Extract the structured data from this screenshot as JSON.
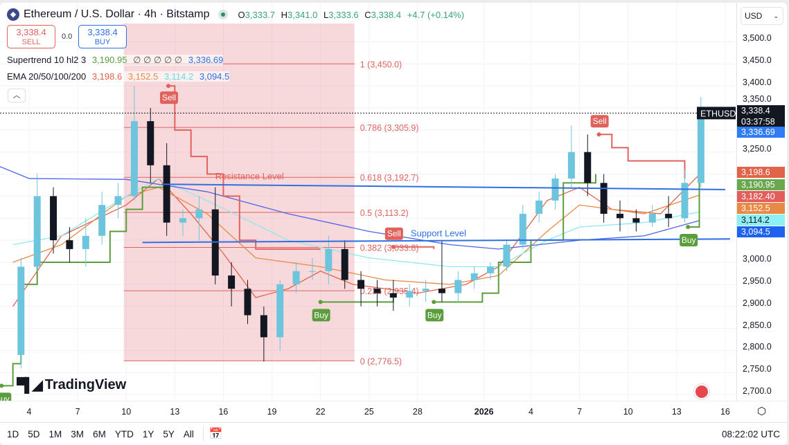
{
  "header": {
    "symbol_title": "Ethereum / U.S. Dollar · 4h · Bitstamp",
    "o_label": "O",
    "o": "3,333.7",
    "h_label": "H",
    "h": "3,341.0",
    "l_label": "L",
    "l": "3,333.6",
    "c_label": "C",
    "c": "3,338.4",
    "change": "+4.7 (+0.14%)"
  },
  "trade": {
    "sell_price": "3,338.4",
    "sell_label": "SELL",
    "spread": "0.0",
    "buy_price": "3,338.4",
    "buy_label": "BUY"
  },
  "indicators": {
    "supertrend": {
      "name": "Supertrend 10 hl2 3",
      "v1": "3,190.95",
      "placeholders": "∅ ∅ ∅ ∅ ∅",
      "v2": "3,336.69"
    },
    "ema": {
      "name": "EMA 20/50/100/200",
      "v20": "3,198.6",
      "v50": "3,152.5",
      "v100": "3,114.2",
      "v200": "3,094.5"
    }
  },
  "currency": "USD",
  "symbol_tag": "ETHUSD",
  "price_tags": [
    {
      "text": "3,338.4",
      "sub": "03:37:58",
      "color": "#131722"
    },
    {
      "text": "3,336.69",
      "color": "#2f7cf6"
    },
    {
      "text": "3,198.6",
      "color": "#e0634a"
    },
    {
      "text": "3,190.95",
      "color": "#6aa84f"
    },
    {
      "text": "3,182.40",
      "color": "#e35d5b"
    },
    {
      "text": "3,152.5",
      "color": "#e88a45"
    },
    {
      "text": "3,114.2",
      "color": "#8ef0f5"
    },
    {
      "text": "3,094.5",
      "color": "#1e62f0"
    }
  ],
  "x_ticks": [
    {
      "label": "4",
      "day": 4
    },
    {
      "label": "7",
      "day": 7
    },
    {
      "label": "10",
      "day": 10
    },
    {
      "label": "13",
      "day": 13
    },
    {
      "label": "16",
      "day": 16
    },
    {
      "label": "19",
      "day": 19
    },
    {
      "label": "22",
      "day": 22
    },
    {
      "label": "25",
      "day": 25
    },
    {
      "label": "28",
      "day": 28
    },
    {
      "label": "2026",
      "day": 32.1,
      "bold": true
    },
    {
      "label": "4",
      "day": 35
    },
    {
      "label": "7",
      "day": 38
    },
    {
      "label": "10",
      "day": 41
    },
    {
      "label": "13",
      "day": 44
    },
    {
      "label": "16",
      "day": 47
    }
  ],
  "toolbar": {
    "ranges": [
      "1D",
      "5D",
      "1M",
      "3M",
      "6M",
      "YTD",
      "1Y",
      "5Y",
      "All"
    ],
    "time": "08:22:02 UTC"
  },
  "brand": "TradingView",
  "chart_data": {
    "type": "candlestick",
    "title": "Ethereum / U.S. Dollar · 4h · Bitstamp",
    "ylim": [
      2680,
      3540
    ],
    "y_ticks": [
      {
        "v": 2700,
        "label": "2,700.0"
      },
      {
        "v": 2750,
        "label": "2,750.0"
      },
      {
        "v": 2800,
        "label": "2,800.0"
      },
      {
        "v": 2850,
        "label": "2,850.0"
      },
      {
        "v": 2900,
        "label": "2,900.0"
      },
      {
        "v": 2950,
        "label": "2,950.0"
      },
      {
        "v": 3000,
        "label": "3,000.0"
      },
      {
        "v": 3250,
        "label": "3,250.0"
      },
      {
        "v": 3350,
        "label": "3,350.0"
      },
      {
        "v": 3400,
        "label": "3,400.0"
      },
      {
        "v": 3450,
        "label": "3,450.0"
      },
      {
        "v": 3500,
        "label": "3,500.0"
      }
    ],
    "x_unit": "day index (Dec=day, Jan=31+day)",
    "candles": [
      [
        3,
        2790,
        3010,
        2760,
        2990
      ],
      [
        4,
        2990,
        3200,
        2980,
        3150
      ],
      [
        5,
        3150,
        3170,
        3020,
        3050
      ],
      [
        6,
        3050,
        3080,
        3000,
        3030
      ],
      [
        7,
        3030,
        3100,
        2990,
        3060
      ],
      [
        8,
        3060,
        3160,
        3040,
        3130
      ],
      [
        9,
        3130,
        3180,
        3100,
        3150
      ],
      [
        10,
        3150,
        3400,
        3140,
        3320
      ],
      [
        11,
        3320,
        3350,
        3180,
        3220
      ],
      [
        12,
        3220,
        3270,
        3060,
        3090
      ],
      [
        13,
        3090,
        3120,
        3060,
        3100
      ],
      [
        14,
        3100,
        3150,
        3050,
        3120
      ],
      [
        15,
        3120,
        3170,
        2950,
        2970
      ],
      [
        16,
        2970,
        3000,
        2900,
        2940
      ],
      [
        17,
        2940,
        2960,
        2860,
        2880
      ],
      [
        18,
        2880,
        2900,
        2775,
        2830
      ],
      [
        19,
        2830,
        2960,
        2800,
        2950
      ],
      [
        20,
        2950,
        3000,
        2930,
        2980
      ],
      [
        21,
        2980,
        3010,
        2960,
        2980
      ],
      [
        22,
        2980,
        3060,
        2950,
        3030
      ],
      [
        23,
        3030,
        3050,
        2940,
        2960
      ],
      [
        24,
        2960,
        2980,
        2900,
        2940
      ],
      [
        25,
        2940,
        2960,
        2900,
        2930
      ],
      [
        26,
        2930,
        2960,
        2890,
        2920
      ],
      [
        27,
        2920,
        2950,
        2900,
        2935
      ],
      [
        28,
        2935,
        2960,
        2910,
        2940
      ],
      [
        29,
        2940,
        3050,
        2910,
        2930
      ],
      [
        30,
        2930,
        2980,
        2910,
        2960
      ],
      [
        31,
        2960,
        2990,
        2940,
        2975
      ],
      [
        32,
        2975,
        3000,
        2960,
        2990
      ],
      [
        33,
        2990,
        3050,
        2980,
        3040
      ],
      [
        34,
        3040,
        3130,
        3030,
        3110
      ],
      [
        35,
        3110,
        3160,
        3090,
        3140
      ],
      [
        36,
        3140,
        3200,
        3120,
        3190
      ],
      [
        37,
        3190,
        3310,
        3170,
        3250
      ],
      [
        38,
        3250,
        3290,
        3150,
        3180
      ],
      [
        39,
        3180,
        3200,
        3090,
        3110
      ],
      [
        40,
        3110,
        3140,
        3070,
        3100
      ],
      [
        41,
        3100,
        3120,
        3070,
        3090
      ],
      [
        42,
        3090,
        3130,
        3080,
        3110
      ],
      [
        43,
        3110,
        3150,
        3080,
        3100
      ],
      [
        44,
        3100,
        3210,
        3090,
        3180
      ],
      [
        45,
        3180,
        3375,
        3170,
        3338.4
      ]
    ],
    "ema": [
      {
        "name": "EMA 20",
        "color": "#e0634a",
        "points": [
          [
            3,
            2900
          ],
          [
            6,
            3060
          ],
          [
            10,
            3130
          ],
          [
            12,
            3190
          ],
          [
            14,
            3110
          ],
          [
            16,
            3020
          ],
          [
            18,
            2920
          ],
          [
            20,
            2940
          ],
          [
            22,
            2980
          ],
          [
            24,
            2950
          ],
          [
            28,
            2930
          ],
          [
            31,
            2950
          ],
          [
            33,
            2990
          ],
          [
            36,
            3140
          ],
          [
            38,
            3170
          ],
          [
            40,
            3120
          ],
          [
            43,
            3110
          ],
          [
            45.4,
            3198.6
          ]
        ]
      },
      {
        "name": "EMA 50",
        "color": "#e88a45",
        "points": [
          [
            3,
            3000
          ],
          [
            6,
            3040
          ],
          [
            10,
            3150
          ],
          [
            12,
            3170
          ],
          [
            15,
            3110
          ],
          [
            18,
            3010
          ],
          [
            22,
            2990
          ],
          [
            26,
            2960
          ],
          [
            30,
            2950
          ],
          [
            33,
            2970
          ],
          [
            36,
            3070
          ],
          [
            38,
            3130
          ],
          [
            42,
            3110
          ],
          [
            45.4,
            3152.5
          ]
        ]
      },
      {
        "name": "EMA 100",
        "color": "#8ee8ef",
        "points": [
          [
            3,
            3040
          ],
          [
            6,
            3060
          ],
          [
            10,
            3150
          ],
          [
            12,
            3190
          ],
          [
            15,
            3140
          ],
          [
            20,
            3050
          ],
          [
            25,
            3010
          ],
          [
            30,
            2990
          ],
          [
            33,
            2990
          ],
          [
            36,
            3050
          ],
          [
            38,
            3080
          ],
          [
            42,
            3090
          ],
          [
            45.4,
            3114.2
          ]
        ]
      },
      {
        "name": "EMA 200",
        "color": "#4d63e8",
        "points": [
          [
            2.2,
            3217
          ],
          [
            4,
            3190
          ],
          [
            10,
            3188
          ],
          [
            15,
            3160
          ],
          [
            20,
            3110
          ],
          [
            25,
            3070
          ],
          [
            30,
            3040
          ],
          [
            33,
            3030
          ],
          [
            38,
            3050
          ],
          [
            42,
            3060
          ],
          [
            45.4,
            3094.5
          ]
        ]
      }
    ],
    "supertrend": [
      {
        "trend": "up",
        "color": "#5a9e3c",
        "points": [
          [
            2.2,
            2720
          ],
          [
            3,
            2770
          ],
          [
            3.5,
            2950
          ],
          [
            4.5,
            3000
          ],
          [
            8,
            3000
          ],
          [
            9,
            3070
          ],
          [
            10,
            3120
          ],
          [
            11,
            3170
          ],
          [
            12.6,
            3170
          ]
        ]
      },
      {
        "trend": "down",
        "color": "#e0625c",
        "points": [
          [
            12.6,
            3400
          ],
          [
            13,
            3300
          ],
          [
            14,
            3240
          ],
          [
            15,
            3200
          ],
          [
            16,
            3150
          ],
          [
            17,
            3050
          ],
          [
            18,
            3030
          ],
          [
            22,
            3030
          ]
        ]
      },
      {
        "trend": "up",
        "color": "#5a9e3c",
        "points": [
          [
            22,
            2910
          ],
          [
            26.5,
            2920
          ]
        ]
      },
      {
        "trend": "down",
        "color": "#e0625c",
        "points": [
          [
            26.5,
            3035
          ],
          [
            29,
            3030
          ]
        ]
      },
      {
        "trend": "up",
        "color": "#5a9e3c",
        "points": [
          [
            29,
            2910
          ],
          [
            32,
            2930
          ],
          [
            33,
            3000
          ],
          [
            35,
            3050
          ],
          [
            37,
            3180
          ],
          [
            39,
            3200
          ]
        ]
      },
      {
        "trend": "down",
        "color": "#e0625c",
        "points": [
          [
            39.2,
            3290
          ],
          [
            40,
            3260
          ],
          [
            41,
            3230
          ],
          [
            43,
            3230
          ],
          [
            44.5,
            3190
          ]
        ]
      },
      {
        "trend": "up",
        "color": "#5a9e3c",
        "points": [
          [
            44.7,
            3080
          ],
          [
            45.4,
            3190.95
          ]
        ]
      }
    ],
    "signals": [
      {
        "label": "Sell",
        "day": 12.6,
        "price": 3400,
        "type": "sell"
      },
      {
        "label": "Sell",
        "day": 26.5,
        "price": 3035,
        "type": "sell"
      },
      {
        "label": "Sell",
        "day": 39.2,
        "price": 3290,
        "type": "sell"
      },
      {
        "label": "Buy",
        "day": 22,
        "price": 2910,
        "type": "buy"
      },
      {
        "label": "Buy",
        "day": 29,
        "price": 2910,
        "type": "buy"
      },
      {
        "label": "Buy",
        "day": 44.7,
        "price": 3080,
        "type": "buy"
      },
      {
        "label": "Buy",
        "day": 2.3,
        "price": 2720,
        "type": "buy"
      }
    ],
    "fibonacci": {
      "start_day": 9.85,
      "end_day": 24.1,
      "levels": [
        {
          "label": "1 (3,450.0)",
          "price": 3450
        },
        {
          "label": "0.786 (3,305.9)",
          "price": 3305.9
        },
        {
          "label": "0.618 (3,192.7)",
          "price": 3192.7
        },
        {
          "label": "0.5 (3,113.2)",
          "price": 3113.2
        },
        {
          "label": "0.382 (3,033.8)",
          "price": 3033.8
        },
        {
          "label": "0.236 (2,935.4)",
          "price": 2935.4
        },
        {
          "label": "0 (2,776.5)",
          "price": 2776.5
        }
      ]
    },
    "lines": [
      {
        "label": "Resistance Level",
        "from": [
          12.2,
          3177
        ],
        "to": [
          47,
          3165
        ],
        "label_day": 15.5,
        "label_color": "#e0625c"
      },
      {
        "label": "Support Level",
        "from": [
          11,
          3045
        ],
        "to": [
          47.3,
          3053
        ],
        "label_day": 26.8,
        "label_color": "#2f6fe4"
      }
    ],
    "last_price": 3338.4
  }
}
